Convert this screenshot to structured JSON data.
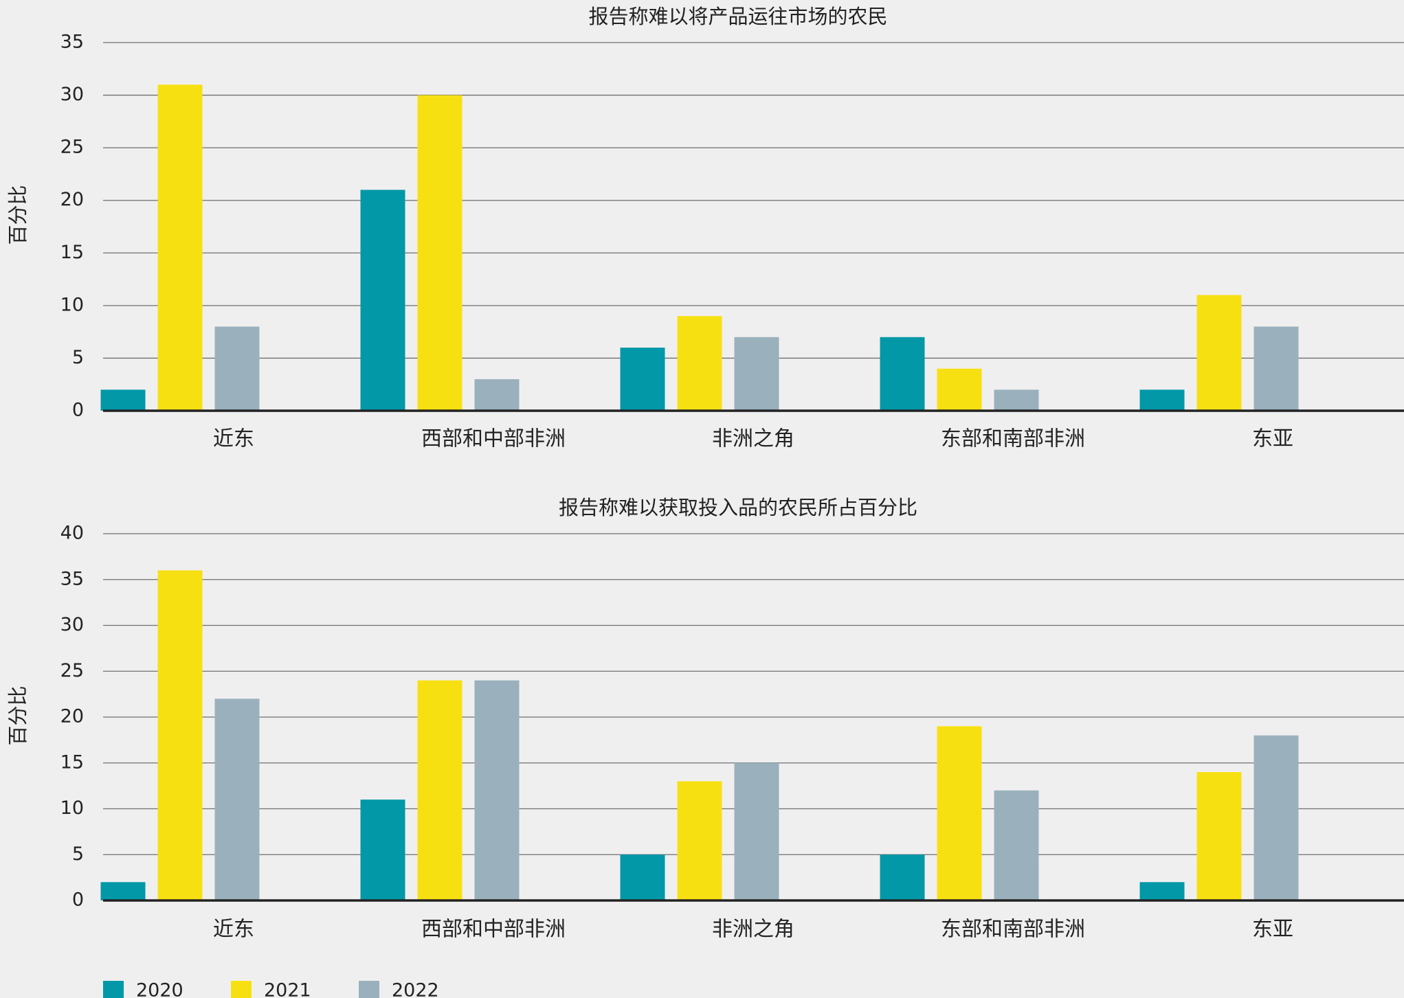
{
  "colors": {
    "2020": "#0298a8",
    "2021": "#f7e012",
    "2022": "#9ab1bd"
  },
  "legend": [
    "2020",
    "2021",
    "2022"
  ],
  "chart_data": [
    {
      "type": "bar",
      "title": "报告称难以将产品运往市场的农民",
      "ylabel": "百分比",
      "xlabel": "",
      "ylim": [
        0,
        35
      ],
      "yticks": [
        0,
        5,
        10,
        15,
        20,
        25,
        30,
        35
      ],
      "grid": true,
      "categories": [
        "近东",
        "西部和中部非洲",
        "非洲之角",
        "东部和南部非洲",
        "东亚"
      ],
      "series": [
        {
          "name": "2020",
          "values": [
            2,
            21,
            6,
            7,
            2
          ]
        },
        {
          "name": "2021",
          "values": [
            31,
            30,
            9,
            4,
            11
          ]
        },
        {
          "name": "2022",
          "values": [
            8,
            3,
            7,
            2,
            8
          ]
        }
      ]
    },
    {
      "type": "bar",
      "title": "报告称难以获取投入品的农民所占百分比",
      "ylabel": "百分比",
      "xlabel": "",
      "ylim": [
        0,
        40
      ],
      "yticks": [
        0,
        5,
        10,
        15,
        20,
        25,
        30,
        35,
        40
      ],
      "grid": true,
      "categories": [
        "近东",
        "西部和中部非洲",
        "非洲之角",
        "东部和南部非洲",
        "东亚"
      ],
      "series": [
        {
          "name": "2020",
          "values": [
            2,
            11,
            5,
            5,
            2
          ]
        },
        {
          "name": "2021",
          "values": [
            36,
            24,
            13,
            19,
            14
          ]
        },
        {
          "name": "2022",
          "values": [
            22,
            24,
            15,
            12,
            18
          ]
        }
      ]
    }
  ]
}
